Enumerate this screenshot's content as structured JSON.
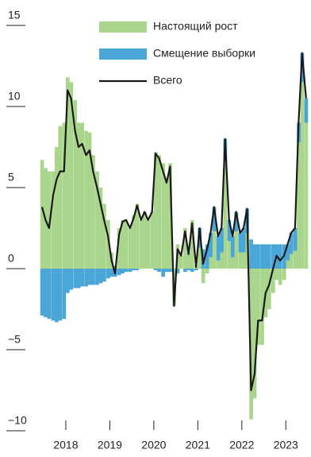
{
  "chart_data": {
    "type": "bar",
    "x": [
      2017.42,
      2017.5,
      2017.58,
      2017.67,
      2017.75,
      2017.83,
      2017.92,
      2018.0,
      2018.08,
      2018.17,
      2018.25,
      2018.33,
      2018.42,
      2018.5,
      2018.58,
      2018.67,
      2018.75,
      2018.83,
      2018.92,
      2019.0,
      2019.08,
      2019.17,
      2019.25,
      2019.33,
      2019.42,
      2019.5,
      2019.58,
      2019.67,
      2019.75,
      2019.83,
      2019.92,
      2020.0,
      2020.08,
      2020.17,
      2020.25,
      2020.33,
      2020.42,
      2020.5,
      2020.58,
      2020.67,
      2020.75,
      2020.83,
      2020.92,
      2021.0,
      2021.08,
      2021.17,
      2021.25,
      2021.33,
      2021.42,
      2021.5,
      2021.58,
      2021.67,
      2021.75,
      2021.83,
      2021.92,
      2022.0,
      2022.08,
      2022.17,
      2022.25,
      2022.33,
      2022.42,
      2022.5,
      2022.58,
      2022.67,
      2022.75,
      2022.83,
      2022.92,
      2023.0,
      2023.08,
      2023.17,
      2023.25,
      2023.33,
      2023.42
    ],
    "series": [
      {
        "name": "Настоящий рост",
        "type": "bar",
        "color": "#a9d68c",
        "values": [
          6.7,
          6.2,
          6,
          6,
          7.5,
          8.8,
          9,
          11.8,
          11.5,
          10.4,
          9,
          9,
          8.5,
          8.4,
          7,
          6,
          5,
          4,
          3,
          1,
          0.2,
          2.5,
          3,
          3,
          2.5,
          3.3,
          4,
          3,
          3.5,
          3,
          3.5,
          7.2,
          7,
          6.5,
          5.5,
          6.5,
          -2.3,
          1.5,
          0.8,
          2.5,
          1,
          3,
          0.2,
          1.3,
          -0.9,
          -0.3,
          0.7,
          2.3,
          0.5,
          1,
          6.7,
          1.7,
          0.7,
          2.3,
          1,
          1,
          2.2,
          -9.3,
          -8,
          -4.7,
          -4.7,
          -3,
          -2.5,
          -1.5,
          -0.7,
          -1,
          -0.7,
          0.5,
          0.9,
          1.1,
          7.8,
          11.5,
          9
        ]
      },
      {
        "name": "Смещение выборки",
        "type": "bar",
        "color": "#4aa6d6",
        "values": [
          -2.9,
          -3,
          -3.1,
          -3.2,
          -3.3,
          -3.2,
          -3.1,
          -1.5,
          -1.3,
          -1.2,
          -1.2,
          -1.1,
          -1.1,
          -1,
          -1,
          -1,
          -0.9,
          -0.8,
          -0.6,
          -0.5,
          -0.5,
          -0.4,
          -0.3,
          -0.2,
          -0.2,
          -0.1,
          -0.1,
          0,
          0,
          0,
          0,
          -0.1,
          -0.2,
          -0.5,
          -0.2,
          -0.2,
          0,
          -0.3,
          0,
          -0.2,
          -0.1,
          -0.2,
          -0.1,
          1.2,
          1.2,
          1.5,
          1.5,
          1.5,
          1.5,
          1.5,
          1.3,
          1.3,
          1.3,
          1.2,
          1.2,
          1.5,
          1.5,
          1.8,
          1.5,
          1.5,
          1.5,
          1.5,
          1.5,
          1.5,
          1.5,
          1.5,
          1.5,
          1,
          1.3,
          1.4,
          1.2,
          1.8,
          1.5
        ]
      },
      {
        "name": "Всего",
        "type": "line",
        "color": "#1a1a1a",
        "values": [
          3.8,
          3,
          2.5,
          4.5,
          5.5,
          6,
          6,
          11,
          10.5,
          8.5,
          7.5,
          7.7,
          7,
          7.3,
          6,
          5,
          4,
          3,
          2,
          0.5,
          -0.3,
          2.1,
          2.9,
          3,
          2.5,
          3.1,
          3.9,
          3,
          3.5,
          3,
          3.5,
          7.1,
          6.8,
          6,
          5.3,
          6.3,
          -2.3,
          1.2,
          0.8,
          2.3,
          0.9,
          2.8,
          0.1,
          2.5,
          0.3,
          1.2,
          2.2,
          3.8,
          2,
          2.5,
          8,
          3,
          2,
          3.5,
          2.2,
          2.5,
          3.7,
          -7.5,
          -6.5,
          -3.2,
          -3.2,
          -1.5,
          -1,
          0,
          0.8,
          0.5,
          0.8,
          1.5,
          2.2,
          2.5,
          9,
          13.3,
          10.5
        ]
      }
    ],
    "xlim": [
      2017.37,
      2023.5
    ],
    "xticks": [
      2018,
      2019,
      2020,
      2021,
      2022,
      2023
    ],
    "ylim": [
      -10,
      15
    ],
    "yticks": [
      15,
      10,
      5,
      0,
      {
        "value": -5,
        "label": "−5"
      },
      {
        "value": -10,
        "label": "−10"
      }
    ]
  }
}
